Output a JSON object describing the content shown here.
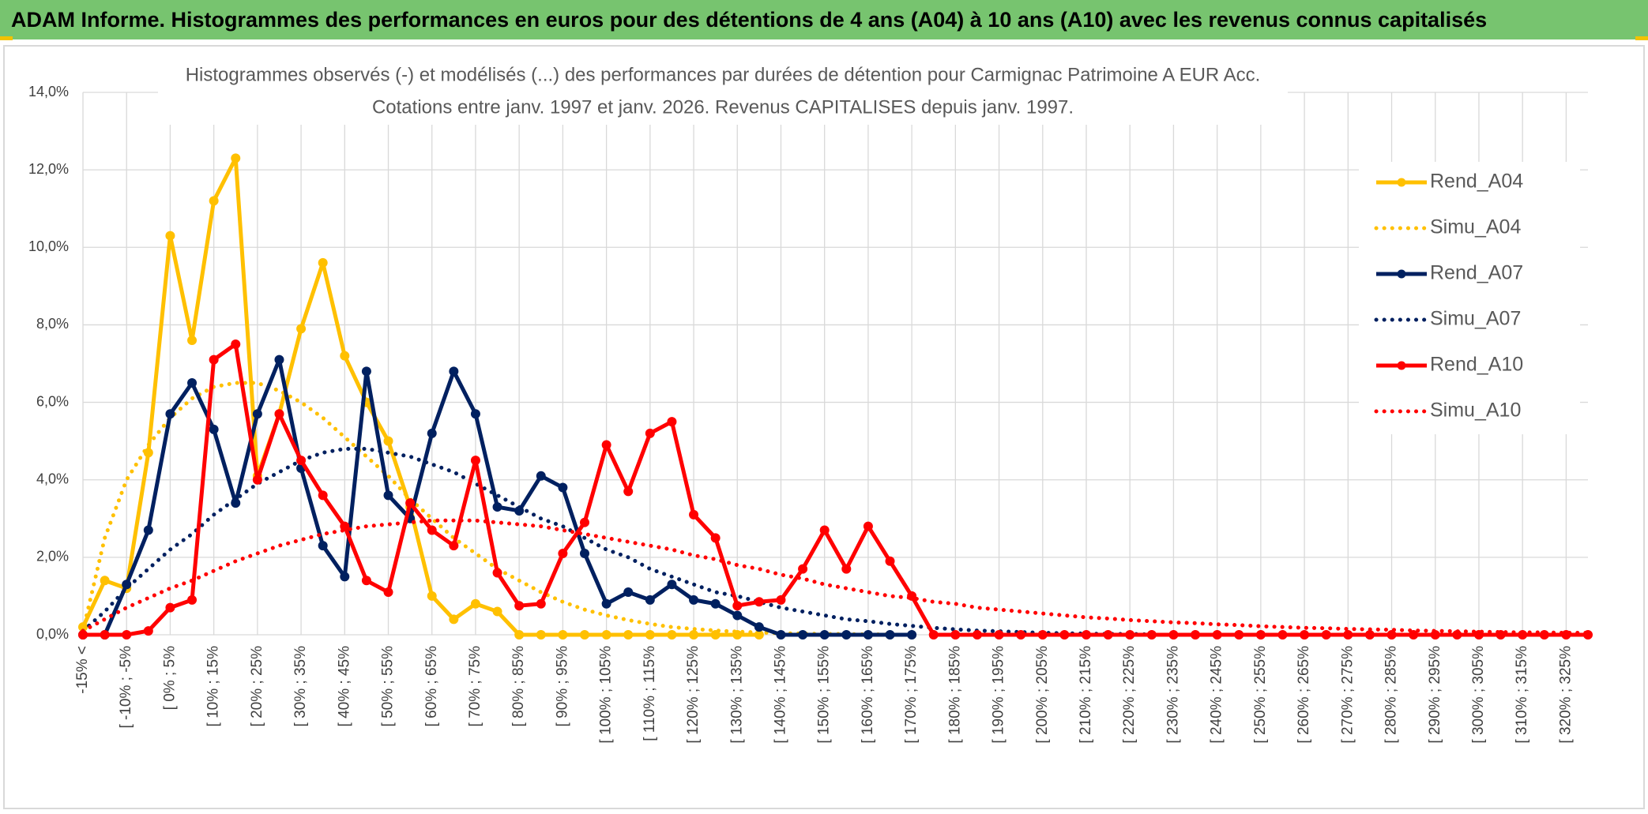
{
  "header": {
    "title": "ADAM Informe. Histogrammes des performances en euros pour des détentions de 4 ans (A04) à 10 ans (A10) avec les revenus connus capitalisés"
  },
  "chart_data": {
    "type": "line",
    "title": "Histogrammes observés (-) et modélisés (...) des performances par durées de détention pour Carmignac Patrimoine A EUR Acc.",
    "subtitle": "Cotations entre janv. 1997 et janv. 2026. Revenus CAPITALISES depuis janv. 1997.",
    "categories": [
      "-15% <",
      null,
      "[ -10% ; -5%",
      null,
      "[ 0% ; 5%",
      null,
      "[ 10% ; 15%",
      null,
      "[ 20% ; 25%",
      null,
      "[ 30% ; 35%",
      null,
      "[ 40% ; 45%",
      null,
      "[ 50% ; 55%",
      null,
      "[ 60% ; 65%",
      null,
      "[ 70% ; 75%",
      null,
      "[ 80% ; 85%",
      null,
      "[ 90% ; 95%",
      null,
      "[ 100% ; 105%",
      null,
      "[ 110% ; 115%",
      null,
      "[ 120% ; 125%",
      null,
      "[ 130% ; 135%",
      null,
      "[ 140% ; 145%",
      null,
      "[ 150% ; 155%",
      null,
      "[ 160% ; 165%",
      null,
      "[ 170% ; 175%",
      null,
      "[ 180% ; 185%",
      null,
      "[ 190% ; 195%",
      null,
      "[ 200% ; 205%",
      null,
      "[ 210% ; 215%",
      null,
      "[ 220% ; 225%",
      null,
      "[ 230% ; 235%",
      null,
      "[ 240% ; 245%",
      null,
      "[ 250% ; 255%",
      null,
      "[ 260% ; 265%",
      null,
      "[ 270% ; 275%",
      null,
      "[ 280% ; 285%",
      null,
      "[ 290% ; 295%",
      null,
      "[ 300% ; 305%",
      null,
      "[ 310% ; 315%",
      null,
      "[ 320% ; 325%",
      null
    ],
    "ylim": [
      0,
      14
    ],
    "yticks": [
      {
        "value": 0,
        "label": "0,0%"
      },
      {
        "value": 2,
        "label": "2,0%"
      },
      {
        "value": 4,
        "label": "4,0%"
      },
      {
        "value": 6,
        "label": "6,0%"
      },
      {
        "value": 8,
        "label": "8,0%"
      },
      {
        "value": 10,
        "label": "10,0%"
      },
      {
        "value": 12,
        "label": "12,0%"
      },
      {
        "value": 14,
        "label": "14,0%"
      }
    ],
    "grid": true,
    "legend": "right",
    "series": [
      {
        "name": "Rend_A04",
        "color": "#ffc000",
        "line_style": "solid",
        "markers": true,
        "values": [
          0.2,
          1.4,
          1.2,
          4.7,
          10.3,
          7.6,
          11.2,
          12.3,
          4.1,
          5.7,
          7.9,
          9.6,
          7.2,
          6.0,
          5.0,
          3.3,
          1.0,
          0.4,
          0.8,
          0.6,
          0,
          0,
          0,
          0,
          0,
          0,
          0,
          0,
          0,
          0,
          0,
          0,
          null,
          null,
          null,
          null,
          null,
          null,
          null,
          null,
          null,
          null,
          null,
          null,
          null,
          null,
          null,
          null,
          null,
          null,
          null,
          null,
          null,
          null,
          null,
          null,
          null,
          null,
          null,
          null,
          null,
          null,
          null,
          null,
          null,
          null,
          null,
          null,
          null,
          null
        ]
      },
      {
        "name": "Simu_A04",
        "color": "#ffc000",
        "line_style": "dotted",
        "markers": false,
        "values": [
          0.1,
          2.5,
          4.0,
          4.9,
          5.6,
          6.1,
          6.4,
          6.5,
          6.5,
          6.3,
          6.0,
          5.6,
          5.1,
          4.6,
          4.1,
          3.5,
          3.0,
          2.5,
          2.1,
          1.7,
          1.4,
          1.1,
          0.85,
          0.65,
          0.5,
          0.38,
          0.28,
          0.2,
          0.15,
          0.11,
          0.08,
          0.06,
          0.04,
          0.03,
          0.02,
          0.02,
          0.01,
          0.01,
          null,
          null,
          null,
          null,
          null,
          null,
          null,
          null,
          null,
          null,
          null,
          null,
          null,
          null,
          null,
          null,
          null,
          null,
          null,
          null,
          null,
          null,
          null,
          null,
          null,
          null,
          null,
          null,
          null,
          null,
          null,
          null
        ]
      },
      {
        "name": "Rend_A07",
        "color": "#002060",
        "line_style": "solid",
        "markers": true,
        "values": [
          0,
          0,
          1.3,
          2.7,
          5.7,
          6.5,
          5.3,
          3.4,
          5.7,
          7.1,
          4.3,
          2.3,
          1.5,
          6.8,
          3.6,
          3.0,
          5.2,
          6.8,
          5.7,
          3.3,
          3.2,
          4.1,
          3.8,
          2.1,
          0.8,
          1.1,
          0.9,
          1.3,
          0.9,
          0.8,
          0.5,
          0.2,
          0,
          0,
          0,
          0,
          0,
          0,
          0,
          null,
          null,
          null,
          null,
          null,
          null,
          null,
          null,
          null,
          null,
          null,
          null,
          null,
          null,
          null,
          null,
          null,
          null,
          null,
          null,
          null,
          null,
          null,
          null,
          null,
          null,
          null,
          null,
          null,
          null,
          null
        ]
      },
      {
        "name": "Simu_A07",
        "color": "#002060",
        "line_style": "dotted",
        "markers": false,
        "values": [
          0.1,
          0.6,
          1.2,
          1.7,
          2.2,
          2.6,
          3.1,
          3.5,
          3.9,
          4.2,
          4.5,
          4.7,
          4.8,
          4.8,
          4.7,
          4.6,
          4.4,
          4.2,
          3.9,
          3.6,
          3.3,
          3.0,
          2.8,
          2.5,
          2.2,
          2.0,
          1.7,
          1.5,
          1.3,
          1.1,
          1.0,
          0.85,
          0.7,
          0.6,
          0.5,
          0.4,
          0.35,
          0.28,
          0.23,
          0.18,
          0.14,
          0.11,
          0.09,
          0.07,
          0.05,
          0.04,
          0.03,
          0.02,
          0.02,
          0.01,
          null,
          null,
          null,
          null,
          null,
          null,
          null,
          null,
          null,
          null,
          null,
          null,
          null,
          null,
          null,
          null,
          null,
          null,
          null,
          null
        ]
      },
      {
        "name": "Rend_A10",
        "color": "#ff0000",
        "line_style": "solid",
        "markers": true,
        "values": [
          0,
          0,
          0,
          0.1,
          0.7,
          0.9,
          7.1,
          7.5,
          4.0,
          5.7,
          4.5,
          3.6,
          2.8,
          1.4,
          1.1,
          3.4,
          2.7,
          2.3,
          4.5,
          1.6,
          0.75,
          0.8,
          2.1,
          2.9,
          4.9,
          3.7,
          5.2,
          5.5,
          3.1,
          2.5,
          0.75,
          0.85,
          0.9,
          1.7,
          2.7,
          1.7,
          2.8,
          1.9,
          1.0,
          0,
          0,
          0,
          0,
          0,
          0,
          0,
          0,
          0,
          0,
          0,
          0,
          0,
          0,
          0,
          0,
          0,
          0,
          0,
          0,
          0,
          0,
          0,
          0,
          0,
          0,
          0,
          0,
          0,
          0,
          0
        ]
      },
      {
        "name": "Simu_A10",
        "color": "#ff0000",
        "line_style": "dotted",
        "markers": false,
        "values": [
          0.1,
          0.4,
          0.7,
          0.95,
          1.2,
          1.4,
          1.65,
          1.9,
          2.1,
          2.3,
          2.45,
          2.6,
          2.7,
          2.8,
          2.85,
          2.9,
          2.95,
          2.95,
          2.95,
          2.9,
          2.85,
          2.8,
          2.7,
          2.6,
          2.5,
          2.4,
          2.3,
          2.2,
          2.05,
          1.95,
          1.8,
          1.7,
          1.55,
          1.45,
          1.3,
          1.2,
          1.1,
          1.0,
          0.95,
          0.85,
          0.8,
          0.7,
          0.65,
          0.6,
          0.55,
          0.5,
          0.45,
          0.42,
          0.38,
          0.35,
          0.32,
          0.3,
          0.27,
          0.25,
          0.22,
          0.2,
          0.18,
          0.17,
          0.15,
          0.14,
          0.13,
          0.11,
          0.1,
          0.09,
          0.08,
          0.07,
          0.06,
          0.06,
          0.05,
          0.05
        ]
      }
    ]
  }
}
